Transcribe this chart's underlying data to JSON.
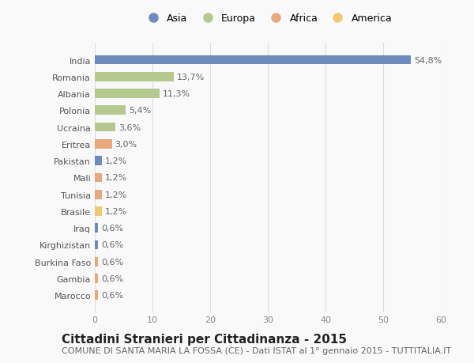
{
  "countries": [
    "India",
    "Romania",
    "Albania",
    "Polonia",
    "Ucraina",
    "Eritrea",
    "Pakistan",
    "Mali",
    "Tunisia",
    "Brasile",
    "Iraq",
    "Kirghizistan",
    "Burkina Faso",
    "Gambia",
    "Marocco"
  ],
  "values": [
    54.8,
    13.7,
    11.3,
    5.4,
    3.6,
    3.0,
    1.2,
    1.2,
    1.2,
    1.2,
    0.6,
    0.6,
    0.6,
    0.6,
    0.6
  ],
  "labels": [
    "54,8%",
    "13,7%",
    "11,3%",
    "5,4%",
    "3,6%",
    "3,0%",
    "1,2%",
    "1,2%",
    "1,2%",
    "1,2%",
    "0,6%",
    "0,6%",
    "0,6%",
    "0,6%",
    "0,6%"
  ],
  "continents": [
    "Asia",
    "Europa",
    "Europa",
    "Europa",
    "Europa",
    "Africa",
    "Asia",
    "Africa",
    "Africa",
    "America",
    "Asia",
    "Asia",
    "Africa",
    "Africa",
    "Africa"
  ],
  "colors": {
    "Asia": "#6b8cbd",
    "Europa": "#b5c98e",
    "Africa": "#e8a87c",
    "America": "#f0c96e"
  },
  "legend_order": [
    "Asia",
    "Europa",
    "Africa",
    "America"
  ],
  "xlim": [
    0,
    60
  ],
  "xticks": [
    0,
    10,
    20,
    30,
    40,
    50,
    60
  ],
  "title": "Cittadini Stranieri per Cittadinanza - 2015",
  "subtitle": "COMUNE DI SANTA MARIA LA FOSSA (CE) - Dati ISTAT al 1° gennaio 2015 - TUTTITALIA.IT",
  "background_color": "#f9f9f9",
  "grid_color": "#dddddd",
  "bar_height": 0.55,
  "title_fontsize": 11,
  "subtitle_fontsize": 8,
  "label_fontsize": 8,
  "tick_fontsize": 8,
  "legend_fontsize": 9
}
